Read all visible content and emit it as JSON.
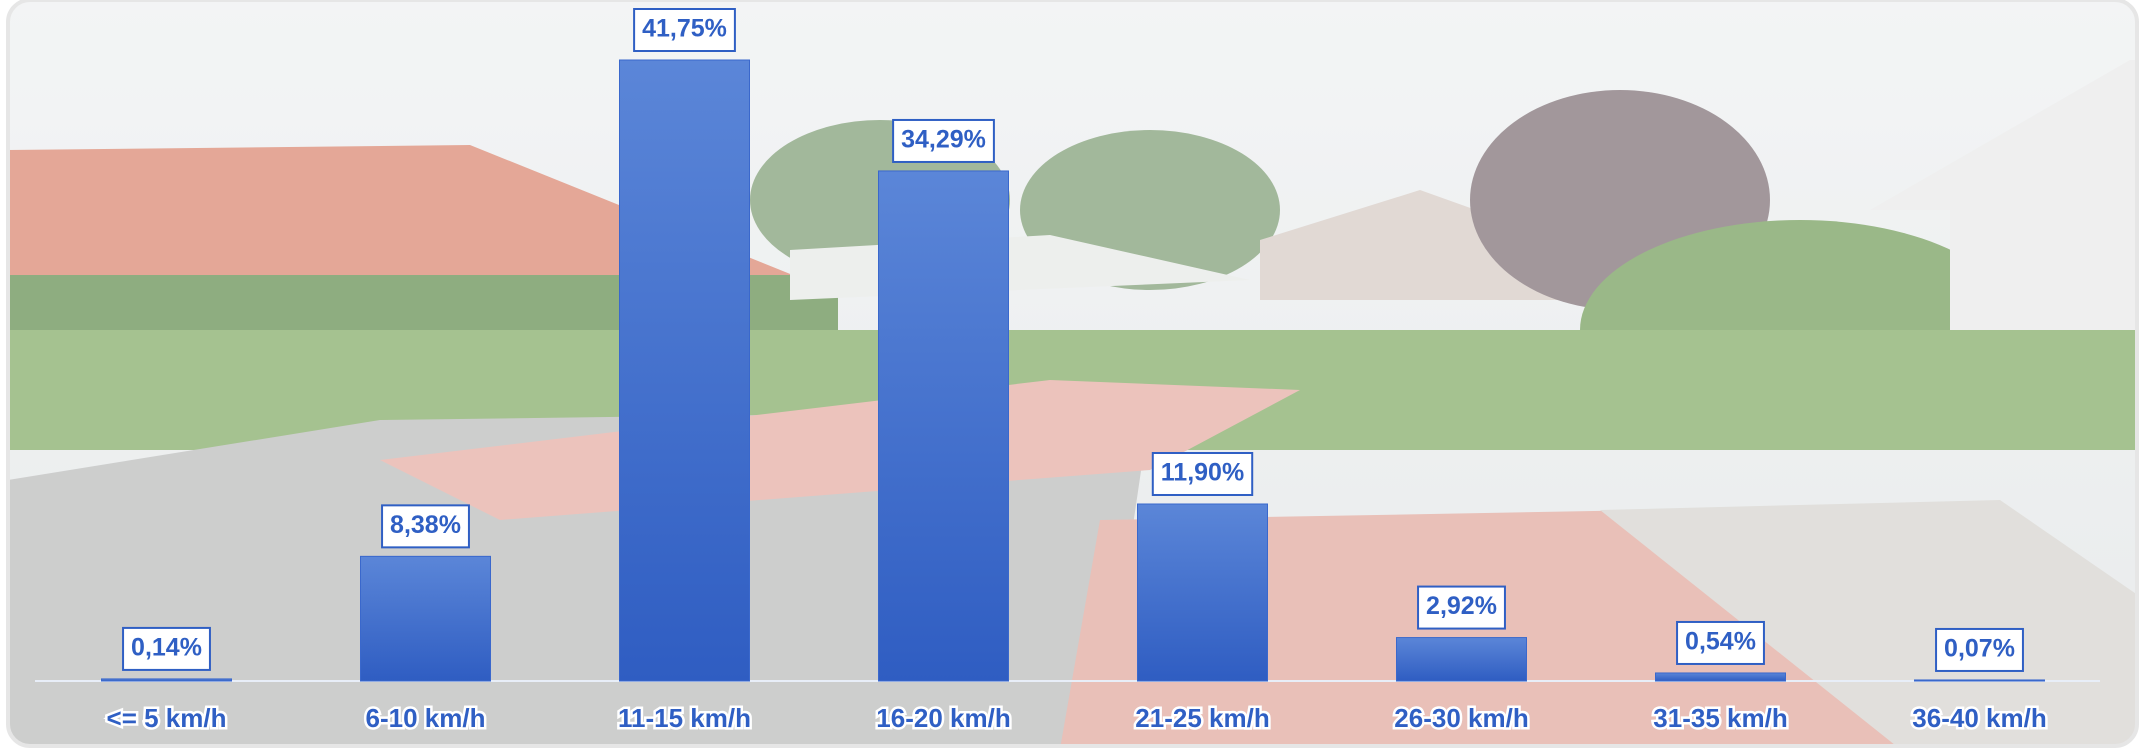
{
  "chart_data": {
    "type": "bar",
    "categories": [
      "<= 5 km/h",
      "6-10 km/h",
      "11-15 km/h",
      "16-20 km/h",
      "21-25 km/h",
      "26-30 km/h",
      "31-35 km/h",
      "36-40 km/h"
    ],
    "values": [
      0.14,
      8.38,
      41.75,
      34.29,
      11.9,
      2.92,
      0.54,
      0.07
    ],
    "value_labels": [
      "0,14%",
      "8,38%",
      "41,75%",
      "34,29%",
      "11,90%",
      "2,92%",
      "0,54%",
      "0,07%"
    ],
    "color": "#3a68cc"
  }
}
